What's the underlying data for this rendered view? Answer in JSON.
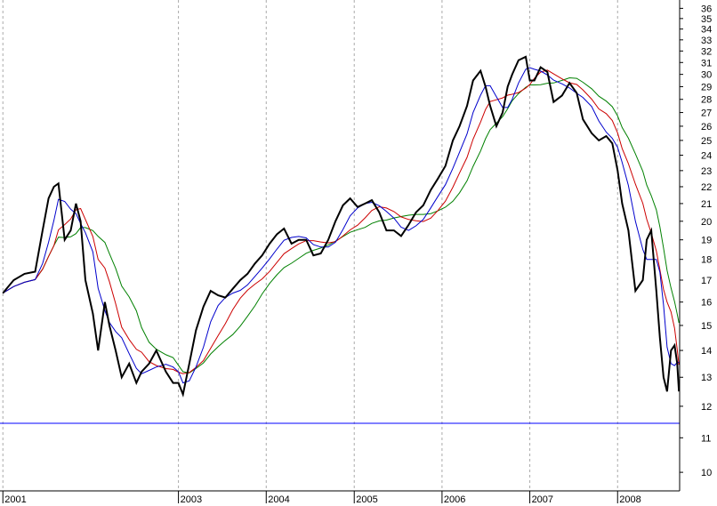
{
  "chart_data": {
    "type": "line",
    "title": "",
    "xlabel": "",
    "ylabel": "",
    "x_tick_labels": [
      "2001",
      "2003",
      "2004",
      "2005",
      "2006",
      "2007",
      "2008"
    ],
    "x_tick_dates": [
      "2001-01-01",
      "2003-01-01",
      "2004-01-01",
      "2005-01-01",
      "2006-01-01",
      "2007-01-01",
      "2008-01-01"
    ],
    "xlim": [
      "2000-12-20",
      "2008-09-15"
    ],
    "y_tick_labels": [
      "10",
      "11",
      "12",
      "13",
      "14",
      "15",
      "16",
      "17",
      "18",
      "19",
      "20",
      "21",
      "22",
      "23",
      "24",
      "25",
      "26",
      "27",
      "28",
      "29",
      "30",
      "31",
      "32",
      "33",
      "34",
      "35",
      "36"
    ],
    "y_ticks": [
      10,
      11,
      12,
      13,
      14,
      15,
      16,
      17,
      18,
      19,
      20,
      21,
      22,
      23,
      24,
      25,
      26,
      27,
      28,
      29,
      30,
      31,
      32,
      33,
      34,
      35,
      36
    ],
    "ylim": [
      9.5,
      36.3
    ],
    "y_scale": "log",
    "grid": {
      "vertical": true,
      "horizontal": false
    },
    "y_axis_position": "right",
    "horizontal_line": {
      "value": 11.45,
      "color": "#0000ff"
    },
    "colors": {
      "price": "#000000",
      "price_down": "#ff0000",
      "ma_short": "#0000cc",
      "ma_medium": "#cc0000",
      "ma_long": "#008000",
      "grid": "#aaaaaa"
    },
    "series": [
      {
        "color": "#000000",
        "points": [
          [
            "2001-01-01",
            16.4
          ],
          [
            "2001-02-15",
            17.0
          ],
          [
            "2001-04-01",
            17.3
          ],
          [
            "2001-05-15",
            17.4
          ],
          [
            "2001-06-15",
            19.5
          ],
          [
            "2001-07-10",
            21.3
          ],
          [
            "2001-08-01",
            22.0
          ],
          [
            "2001-08-20",
            22.2
          ],
          [
            "2001-09-15",
            19.0
          ],
          [
            "2001-10-10",
            19.5
          ],
          [
            "2001-11-01",
            21.0
          ],
          [
            "2001-11-20",
            20.0
          ],
          [
            "2001-12-10",
            17.0
          ],
          [
            "2002-01-10",
            15.5
          ],
          [
            "2002-02-01",
            14.0
          ],
          [
            "2002-03-01",
            16.0
          ],
          [
            "2002-03-20",
            15.0
          ],
          [
            "2002-04-15",
            14.0
          ],
          [
            "2002-05-10",
            13.0
          ],
          [
            "2002-06-10",
            13.5
          ],
          [
            "2002-07-10",
            12.8
          ],
          [
            "2002-08-01",
            13.2
          ],
          [
            "2002-09-01",
            13.5
          ],
          [
            "2002-10-01",
            14.0
          ],
          [
            "2002-11-10",
            13.2
          ],
          [
            "2002-12-10",
            12.8
          ],
          [
            "2003-01-01",
            12.8
          ],
          [
            "2003-01-20",
            12.4
          ],
          [
            "2003-02-15",
            13.5
          ],
          [
            "2003-03-15",
            14.8
          ],
          [
            "2003-04-15",
            15.8
          ],
          [
            "2003-05-15",
            16.5
          ],
          [
            "2003-06-15",
            16.3
          ],
          [
            "2003-07-15",
            16.2
          ],
          [
            "2003-08-15",
            16.6
          ],
          [
            "2003-09-15",
            17.0
          ],
          [
            "2003-10-15",
            17.3
          ],
          [
            "2003-11-15",
            17.8
          ],
          [
            "2003-12-15",
            18.2
          ],
          [
            "2004-01-15",
            18.8
          ],
          [
            "2004-02-15",
            19.3
          ],
          [
            "2004-03-15",
            19.6
          ],
          [
            "2004-04-15",
            18.8
          ],
          [
            "2004-05-15",
            19.0
          ],
          [
            "2004-06-15",
            19.0
          ],
          [
            "2004-07-15",
            18.2
          ],
          [
            "2004-08-15",
            18.3
          ],
          [
            "2004-09-15",
            19.0
          ],
          [
            "2004-10-15",
            20.0
          ],
          [
            "2004-11-15",
            20.9
          ],
          [
            "2004-12-15",
            21.3
          ],
          [
            "2005-01-15",
            20.8
          ],
          [
            "2005-02-15",
            21.0
          ],
          [
            "2005-03-15",
            21.2
          ],
          [
            "2005-04-15",
            20.5
          ],
          [
            "2005-05-15",
            19.5
          ],
          [
            "2005-06-15",
            19.5
          ],
          [
            "2005-07-15",
            19.2
          ],
          [
            "2005-08-15",
            19.8
          ],
          [
            "2005-09-15",
            20.5
          ],
          [
            "2005-10-15",
            20.9
          ],
          [
            "2005-11-15",
            21.8
          ],
          [
            "2005-12-15",
            22.5
          ],
          [
            "2006-01-15",
            23.3
          ],
          [
            "2006-02-15",
            25.0
          ],
          [
            "2006-03-15",
            26.0
          ],
          [
            "2006-04-15",
            27.5
          ],
          [
            "2006-05-10",
            29.5
          ],
          [
            "2006-06-10",
            30.3
          ],
          [
            "2006-07-01",
            29.0
          ],
          [
            "2006-07-20",
            27.5
          ],
          [
            "2006-08-15",
            26.0
          ],
          [
            "2006-09-10",
            27.0
          ],
          [
            "2006-10-01",
            29.0
          ],
          [
            "2006-10-20",
            30.0
          ],
          [
            "2006-11-15",
            31.2
          ],
          [
            "2006-12-15",
            31.5
          ],
          [
            "2007-01-01",
            29.5
          ],
          [
            "2007-01-20",
            29.5
          ],
          [
            "2007-02-15",
            30.6
          ],
          [
            "2007-03-15",
            30.2
          ],
          [
            "2007-04-10",
            27.8
          ],
          [
            "2007-05-15",
            28.3
          ],
          [
            "2007-06-15",
            29.3
          ],
          [
            "2007-07-15",
            28.5
          ],
          [
            "2007-08-10",
            26.5
          ],
          [
            "2007-09-15",
            25.5
          ],
          [
            "2007-10-15",
            25.0
          ],
          [
            "2007-11-15",
            25.3
          ],
          [
            "2007-12-10",
            24.8
          ],
          [
            "2008-01-01",
            23.0
          ],
          [
            "2008-01-20",
            21.0
          ],
          [
            "2008-02-15",
            19.5
          ],
          [
            "2008-03-15",
            16.5
          ],
          [
            "2008-04-15",
            17.0
          ],
          [
            "2008-05-01",
            19.0
          ],
          [
            "2008-05-20",
            19.5
          ],
          [
            "2008-06-10",
            16.5
          ],
          [
            "2008-06-25",
            14.5
          ],
          [
            "2008-07-10",
            13.0
          ],
          [
            "2008-07-25",
            12.5
          ],
          [
            "2008-08-10",
            14.0
          ],
          [
            "2008-08-25",
            14.2
          ],
          [
            "2008-09-05",
            13.5
          ],
          [
            "2008-09-12",
            12.5
          ]
        ]
      },
      {
        "color": "#0000cc",
        "smoothing": 3
      },
      {
        "color": "#cc0000",
        "smoothing": 6
      },
      {
        "color": "#008000",
        "smoothing": 10
      }
    ]
  }
}
